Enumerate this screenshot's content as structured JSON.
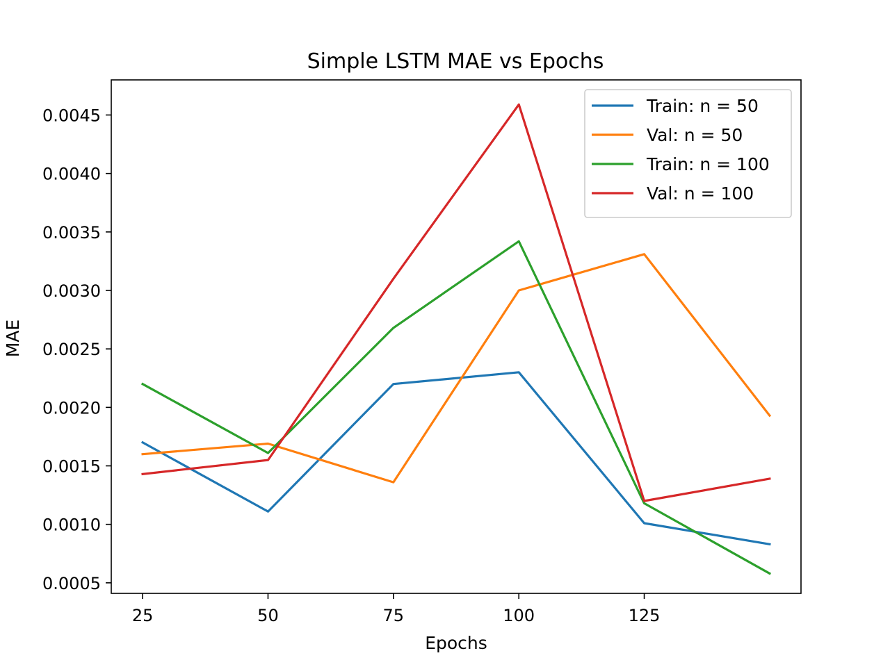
{
  "chart_data": {
    "type": "line",
    "title": "Simple LSTM MAE vs Epochs",
    "xlabel": "Epochs",
    "ylabel": "MAE",
    "x": [
      25,
      50,
      75,
      100,
      125,
      150
    ],
    "xlim": [
      18.75,
      156.25
    ],
    "ylim": [
      0.00041,
      0.0048
    ],
    "xticks": [
      25,
      50,
      75,
      100,
      125
    ],
    "xtick_labels": [
      "25",
      "50",
      "75",
      "100",
      "125"
    ],
    "yticks": [
      0.0005,
      0.001,
      0.0015,
      0.002,
      0.0025,
      0.003,
      0.0035,
      0.004,
      0.0045
    ],
    "ytick_labels": [
      "0.0005",
      "0.0010",
      "0.0015",
      "0.0020",
      "0.0025",
      "0.0030",
      "0.0035",
      "0.0040",
      "0.0045"
    ],
    "grid": false,
    "legend_position": "top-right",
    "series": [
      {
        "name": "Train: n = 50",
        "color": "#1f77b4",
        "values": [
          0.0017,
          0.00111,
          0.0022,
          0.0023,
          0.00101,
          0.00083
        ]
      },
      {
        "name": "Val: n = 50",
        "color": "#ff7f0e",
        "values": [
          0.0016,
          0.00169,
          0.00136,
          0.003,
          0.00331,
          0.00193
        ]
      },
      {
        "name": "Train: n = 100",
        "color": "#2ca02c",
        "values": [
          0.0022,
          0.00161,
          0.00268,
          0.00342,
          0.00118,
          0.00058
        ]
      },
      {
        "name": "Val: n = 100",
        "color": "#d62728",
        "values": [
          0.00143,
          0.00155,
          0.0031,
          0.00459,
          0.0012,
          0.00139
        ]
      }
    ]
  }
}
